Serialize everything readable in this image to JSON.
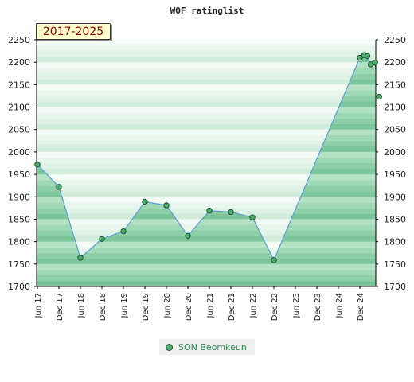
{
  "chart_data": {
    "type": "area",
    "title": "WOF ratinglist",
    "period": "2017-2025",
    "ylim": [
      1700,
      2250
    ],
    "yticks": [
      1700,
      1750,
      1800,
      1850,
      1900,
      1950,
      2000,
      2050,
      2100,
      2150,
      2200,
      2250
    ],
    "xtick_labels": [
      "Jun 17",
      "Dec 17",
      "Jun 18",
      "Dec 18",
      "Jun 19",
      "Dec 19",
      "Jun 20",
      "Dec 20",
      "Jun 21",
      "Dec 21",
      "Jun 22",
      "Dec 22",
      "Jun 23",
      "Dec 23",
      "Jun 24",
      "Dec 24"
    ],
    "grid": true,
    "legend_position": "bottom",
    "series": [
      {
        "name": "SON Beomkeun",
        "color": "#4caf6e",
        "points": [
          {
            "x": 0,
            "y": 1972
          },
          {
            "x": 1,
            "y": 1922
          },
          {
            "x": 2,
            "y": 1764
          },
          {
            "x": 3,
            "y": 1806
          },
          {
            "x": 4,
            "y": 1823
          },
          {
            "x": 5,
            "y": 1889
          },
          {
            "x": 6,
            "y": 1881
          },
          {
            "x": 7,
            "y": 1813
          },
          {
            "x": 8,
            "y": 1869
          },
          {
            "x": 9,
            "y": 1866
          },
          {
            "x": 10,
            "y": 1854
          },
          {
            "x": 11,
            "y": 1759
          },
          {
            "x": 15.0,
            "y": 2210
          },
          {
            "x": 15.2,
            "y": 2216
          },
          {
            "x": 15.35,
            "y": 2214
          },
          {
            "x": 15.5,
            "y": 2195
          },
          {
            "x": 15.7,
            "y": 2199
          },
          {
            "x": 15.9,
            "y": 2123
          }
        ]
      }
    ]
  }
}
